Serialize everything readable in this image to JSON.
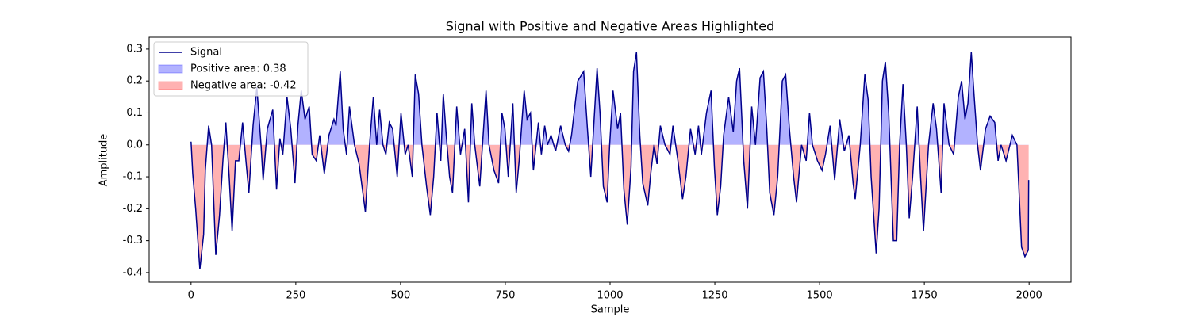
{
  "chart_data": {
    "type": "line",
    "title": "Signal with Positive and Negative Areas Highlighted",
    "x_label": "Sample",
    "y_label": "Amplitude",
    "xlim": [
      -100,
      2100
    ],
    "ylim": [
      -0.43,
      0.337
    ],
    "xticks": [
      0,
      250,
      500,
      750,
      1000,
      1250,
      1500,
      1750,
      2000
    ],
    "yticks": [
      -0.4,
      -0.3,
      -0.2,
      -0.1,
      {
        "value": 0,
        "label": "0.0"
      },
      0.1,
      0.2,
      0.3
    ],
    "legend": "upper left",
    "x": [
      0,
      4,
      11,
      21,
      30,
      34,
      42,
      49,
      59,
      68,
      76,
      83,
      91,
      98,
      106,
      114,
      123,
      131,
      138,
      148,
      157,
      167,
      172,
      182,
      195,
      204,
      212,
      219,
      229,
      238,
      248,
      255,
      263,
      272,
      282,
      289,
      299,
      307,
      318,
      329,
      341,
      346,
      356,
      363,
      371,
      378,
      390,
      401,
      416,
      426,
      435,
      443,
      450,
      458,
      465,
      473,
      481,
      492,
      501,
      511,
      518,
      528,
      535,
      543,
      551,
      562,
      571,
      579,
      587,
      596,
      602,
      609,
      617,
      624,
      634,
      643,
      653,
      662,
      670,
      677,
      689,
      704,
      711,
      723,
      734,
      742,
      749,
      757,
      768,
      776,
      783,
      795,
      802,
      810,
      817,
      829,
      836,
      844,
      851,
      859,
      870,
      882,
      893,
      901,
      908,
      923,
      937,
      946,
      954,
      969,
      976,
      984,
      993,
      999,
      1007,
      1018,
      1025,
      1033,
      1041,
      1050,
      1056,
      1063,
      1071,
      1078,
      1090,
      1097,
      1105,
      1112,
      1120,
      1131,
      1143,
      1150,
      1162,
      1173,
      1181,
      1192,
      1203,
      1211,
      1218,
      1230,
      1241,
      1249,
      1256,
      1264,
      1271,
      1283,
      1294,
      1302,
      1309,
      1319,
      1328,
      1338,
      1347,
      1358,
      1366,
      1374,
      1381,
      1391,
      1400,
      1411,
      1419,
      1428,
      1438,
      1445,
      1457,
      1468,
      1476,
      1483,
      1495,
      1506,
      1514,
      1525,
      1536,
      1548,
      1559,
      1570,
      1580,
      1585,
      1597,
      1608,
      1616,
      1623,
      1635,
      1642,
      1650,
      1657,
      1665,
      1676,
      1684,
      1691,
      1699,
      1707,
      1714,
      1722,
      1733,
      1741,
      1748,
      1760,
      1771,
      1779,
      1790,
      1797,
      1809,
      1820,
      1831,
      1839,
      1847,
      1854,
      1862,
      1869,
      1877,
      1884,
      1896,
      1907,
      1918,
      1926,
      1933,
      1945,
      1960,
      1971,
      1982,
      1990,
      1998,
      1999
    ],
    "series": [
      {
        "name": "Signal",
        "color": "#00008b",
        "values": [
          0.01,
          -0.09,
          -0.2,
          -0.39,
          -0.28,
          -0.08,
          0.06,
          0.0,
          -0.345,
          -0.22,
          -0.05,
          0.07,
          -0.1,
          -0.27,
          -0.05,
          -0.05,
          0.07,
          -0.05,
          -0.15,
          0.06,
          0.18,
          0.0,
          -0.11,
          0.05,
          0.11,
          -0.14,
          0.02,
          -0.03,
          0.15,
          0.05,
          -0.12,
          0.06,
          0.17,
          0.08,
          0.12,
          -0.03,
          -0.05,
          0.03,
          -0.09,
          0.03,
          0.08,
          0.06,
          0.23,
          0.05,
          -0.03,
          0.12,
          0.0,
          -0.06,
          -0.21,
          0.0,
          0.15,
          0.0,
          0.11,
          0.0,
          -0.03,
          0.07,
          0.05,
          -0.1,
          0.1,
          -0.03,
          0.0,
          -0.1,
          0.22,
          0.16,
          0.0,
          -0.13,
          -0.22,
          -0.1,
          0.1,
          -0.05,
          0.16,
          0.03,
          -0.1,
          -0.15,
          0.12,
          -0.03,
          0.05,
          -0.18,
          0.13,
          0.0,
          -0.13,
          0.17,
          0.0,
          -0.08,
          -0.12,
          0.1,
          0.05,
          -0.1,
          0.13,
          -0.15,
          -0.05,
          0.17,
          0.08,
          0.1,
          -0.08,
          0.07,
          -0.03,
          0.06,
          0.0,
          0.03,
          -0.02,
          0.06,
          0.0,
          -0.02,
          0.03,
          0.2,
          0.23,
          0.05,
          -0.1,
          0.24,
          0.1,
          -0.13,
          -0.18,
          0.0,
          0.17,
          0.05,
          0.1,
          -0.14,
          -0.25,
          -0.07,
          0.23,
          0.29,
          0.03,
          -0.12,
          -0.19,
          -0.09,
          0.0,
          -0.06,
          0.06,
          0.0,
          -0.03,
          0.06,
          -0.05,
          -0.17,
          -0.1,
          0.05,
          -0.03,
          0.06,
          -0.03,
          0.1,
          0.17,
          -0.07,
          -0.22,
          -0.13,
          0.03,
          0.15,
          0.04,
          0.2,
          0.24,
          -0.05,
          -0.2,
          0.12,
          0.0,
          0.21,
          0.23,
          0.05,
          -0.15,
          -0.22,
          -0.1,
          0.2,
          0.22,
          0.05,
          -0.1,
          -0.18,
          0.0,
          -0.05,
          0.1,
          0.0,
          -0.05,
          -0.08,
          -0.03,
          0.06,
          -0.11,
          0.08,
          -0.02,
          0.03,
          -0.12,
          -0.17,
          0.0,
          0.22,
          0.14,
          -0.1,
          -0.34,
          -0.2,
          0.2,
          0.26,
          0.1,
          -0.3,
          -0.3,
          0.0,
          0.19,
          0.0,
          -0.23,
          -0.1,
          0.12,
          -0.1,
          -0.27,
          0.0,
          0.13,
          0.05,
          -0.15,
          0.13,
          0.0,
          -0.03,
          0.15,
          0.2,
          0.08,
          0.13,
          0.29,
          0.15,
          0.0,
          -0.08,
          0.05,
          0.09,
          0.07,
          -0.05,
          0.0,
          -0.05,
          0.03,
          0.0,
          -0.32,
          -0.35,
          -0.33,
          -0.11
        ]
      }
    ],
    "fills": [
      {
        "name": "Positive area: 0.38",
        "color": "#0000ff"
      },
      {
        "name": "Negative area: -0.42",
        "color": "#ff0000"
      }
    ]
  }
}
